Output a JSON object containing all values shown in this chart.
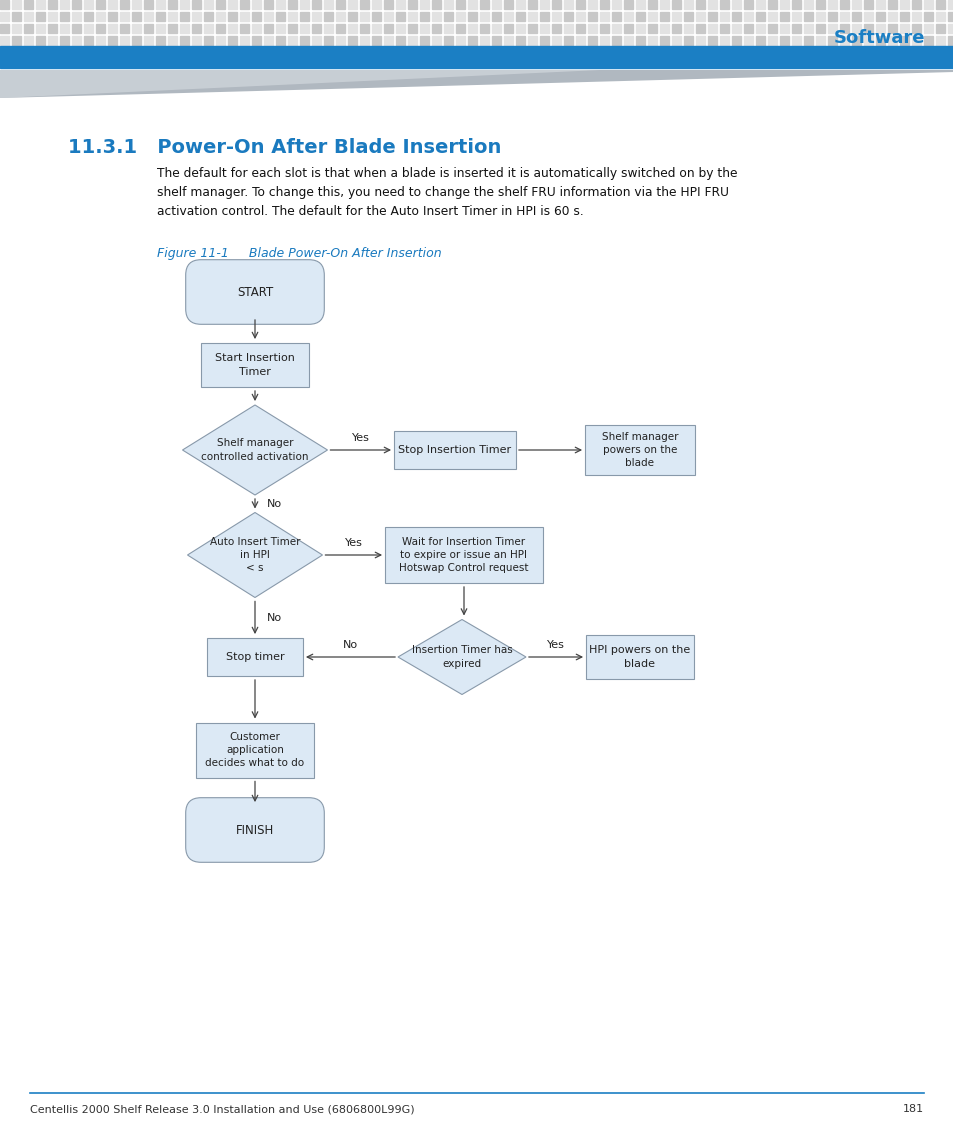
{
  "title": "11.3.1   Power-On After Blade Insertion",
  "title_color": "#1a7abf",
  "figure_caption": "Figure 11-1     Blade Power-On After Insertion",
  "figure_caption_color": "#1a7abf",
  "body_text_lines": [
    "The default for each slot is that when a blade is inserted it is automatically switched on by the",
    "shelf manager. To change this, you need to change the shelf FRU information via the HPI FRU",
    "activation control. The default for the Auto Insert Timer in HPI is 60 s."
  ],
  "footer_text": "Centellis 2000 Shelf Release 3.0 Installation and Use (6806800L99G)",
  "footer_page": "181",
  "header_blue_color": "#1b7fc4",
  "box_fill": "#dce9f5",
  "box_edge": "#8899aa",
  "text_color": "#222222",
  "arrow_color": "#444444",
  "background": "#ffffff"
}
